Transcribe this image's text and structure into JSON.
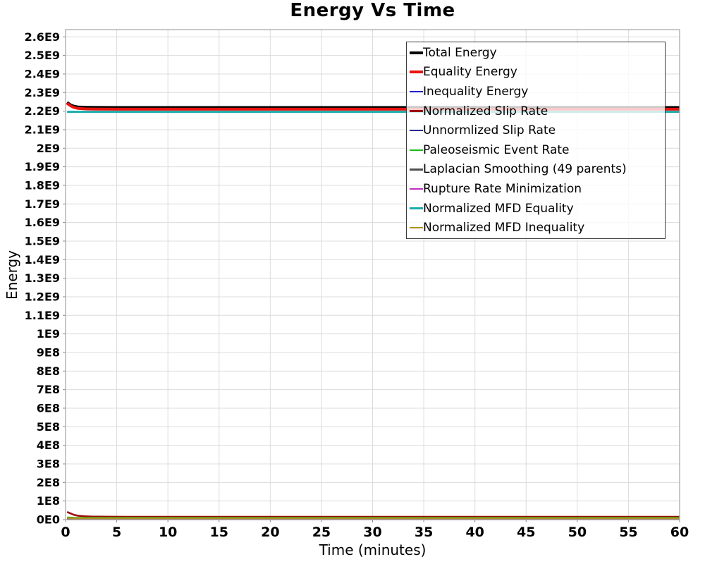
{
  "chart_data": {
    "type": "line",
    "title": "Energy Vs Time",
    "xlabel": "Time (minutes)",
    "ylabel": "Energy",
    "xlim": [
      0,
      60
    ],
    "ylim": [
      0,
      2639000000.0
    ],
    "grid": true,
    "grid_color": "#dcdcdc",
    "plot_border_color": "#ababab",
    "tick_color": "#8a8a8a",
    "legend_position": "top-right",
    "legend_border_color": "#3a3a3a",
    "x_ticks": [
      0,
      5,
      10,
      15,
      20,
      25,
      30,
      35,
      40,
      45,
      50,
      55,
      60
    ],
    "y_ticks": [
      {
        "value": 0,
        "label": "0E0"
      },
      {
        "value": 100000000.0,
        "label": "1E8"
      },
      {
        "value": 200000000.0,
        "label": "2E8"
      },
      {
        "value": 300000000.0,
        "label": "3E8"
      },
      {
        "value": 400000000.0,
        "label": "4E8"
      },
      {
        "value": 500000000.0,
        "label": "5E8"
      },
      {
        "value": 600000000.0,
        "label": "6E8"
      },
      {
        "value": 700000000.0,
        "label": "7E8"
      },
      {
        "value": 800000000.0,
        "label": "8E8"
      },
      {
        "value": 900000000.0,
        "label": "9E8"
      },
      {
        "value": 1000000000.0,
        "label": "1E9"
      },
      {
        "value": 1100000000.0,
        "label": "1.1E9"
      },
      {
        "value": 1200000000.0,
        "label": "1.2E9"
      },
      {
        "value": 1300000000.0,
        "label": "1.3E9"
      },
      {
        "value": 1400000000.0,
        "label": "1.4E9"
      },
      {
        "value": 1500000000.0,
        "label": "1.5E9"
      },
      {
        "value": 1600000000.0,
        "label": "1.6E9"
      },
      {
        "value": 1700000000.0,
        "label": "1.7E9"
      },
      {
        "value": 1800000000.0,
        "label": "1.8E9"
      },
      {
        "value": 1900000000.0,
        "label": "1.9E9"
      },
      {
        "value": 2000000000.0,
        "label": "2E9"
      },
      {
        "value": 2100000000.0,
        "label": "2.1E9"
      },
      {
        "value": 2200000000.0,
        "label": "2.2E9"
      },
      {
        "value": 2300000000.0,
        "label": "2.3E9"
      },
      {
        "value": 2400000000.0,
        "label": "2.4E9"
      },
      {
        "value": 2500000000.0,
        "label": "2.5E9"
      },
      {
        "value": 2600000000.0,
        "label": "2.6E9"
      }
    ],
    "series": [
      {
        "name": "Total Energy",
        "color": "#000000",
        "width": 4,
        "x": [
          0.15,
          0.5,
          0.8,
          1.2,
          2,
          3,
          5,
          60
        ],
        "y": [
          2247000000.0,
          2233000000.0,
          2226500000.0,
          2222500000.0,
          2220500000.0,
          2219800000.0,
          2219500000.0,
          2219500000.0
        ]
      },
      {
        "name": "Equality Energy",
        "color": "#e8130f",
        "width": 4,
        "x": [
          0.15,
          0.5,
          0.8,
          1.2,
          2,
          3,
          5,
          60
        ],
        "y": [
          2242000000.0,
          2228500000.0,
          2220000000.0,
          2214800000.0,
          2211800000.0,
          2210800000.0,
          2210500000.0,
          2210500000.0
        ]
      },
      {
        "name": "Inequality Energy",
        "color": "#2020cc",
        "width": 2.5,
        "x": [
          0.15,
          60
        ],
        "y": [
          1200000.0,
          1200000.0
        ]
      },
      {
        "name": "Normalized Slip Rate",
        "color": "#9e0b0b",
        "width": 2.5,
        "x": [
          0.15,
          0.5,
          0.8,
          1.2,
          1.8,
          2.5,
          4,
          6,
          60
        ],
        "y": [
          41000000.0,
          33000000.0,
          26000000.0,
          21000000.0,
          18000000.0,
          16500000.0,
          15500000.0,
          15000000.0,
          15000000.0
        ]
      },
      {
        "name": "Unnormlized Slip Rate",
        "color": "#2b2b94",
        "width": 2.5,
        "x": [
          0.15,
          60
        ],
        "y": [
          2200000.0,
          2200000.0
        ]
      },
      {
        "name": "Paleoseismic Event Rate",
        "color": "#19bc19",
        "width": 2.5,
        "x": [
          0.15,
          1,
          60
        ],
        "y": [
          11500000.0,
          9500000.0,
          9500000.0
        ]
      },
      {
        "name": "Laplacian Smoothing (49 parents)",
        "color": "#4f4f4f",
        "width": 2.5,
        "x": [
          0.15,
          60
        ],
        "y": [
          3200000.0,
          3200000.0
        ]
      },
      {
        "name": "Rupture Rate Minimization",
        "color": "#c32ec3",
        "width": 2.5,
        "x": [
          0.15,
          60
        ],
        "y": [
          1800000.0,
          1800000.0
        ]
      },
      {
        "name": "Normalized MFD Equality",
        "color": "#1aabab",
        "width": 3,
        "x": [
          0.15,
          60
        ],
        "y": [
          2196000000.0,
          2196000000.0
        ]
      },
      {
        "name": "Normalized MFD Inequality",
        "color": "#b3901d",
        "width": 2.5,
        "x": [
          0.15,
          0.8,
          2,
          60
        ],
        "y": [
          7500000.0,
          6500000.0,
          6000000.0,
          6000000.0
        ]
      }
    ]
  }
}
